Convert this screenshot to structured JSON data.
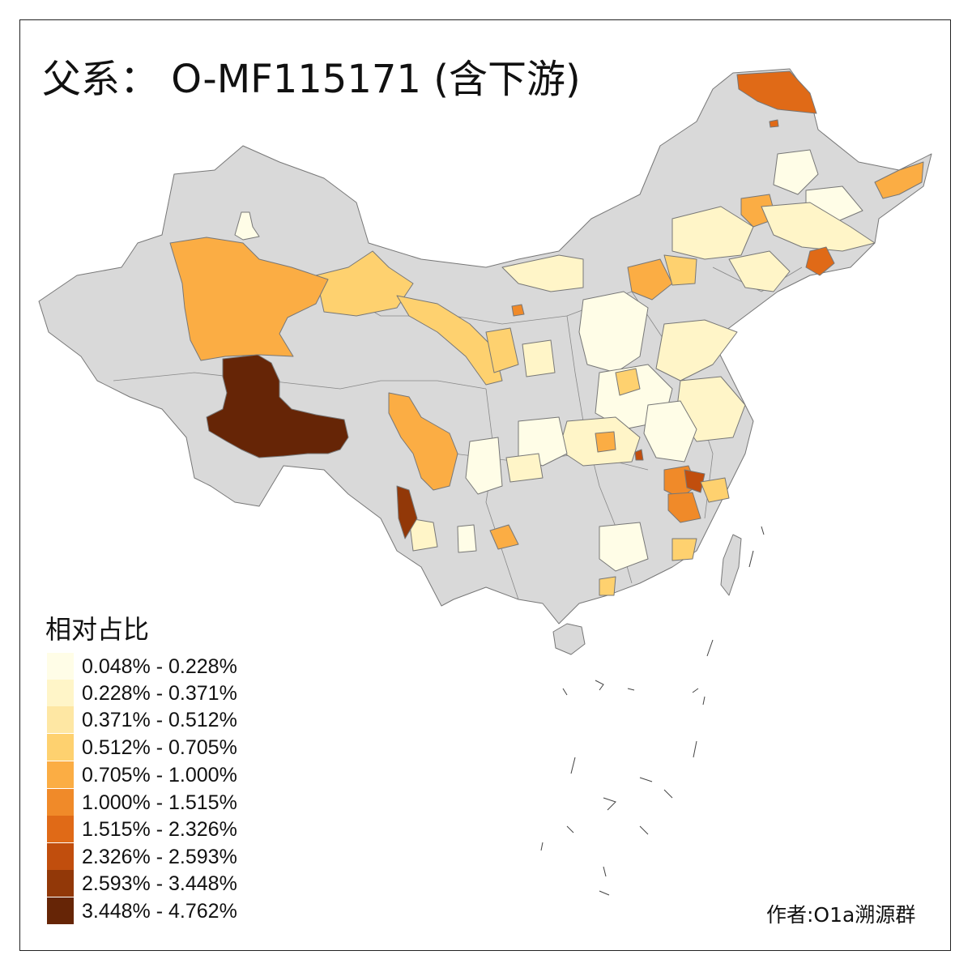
{
  "title": "父系： O-MF115171 (含下游)",
  "legend": {
    "title": "相对占比",
    "items": [
      {
        "label": "0.048% - 0.228%",
        "color": "#FFFDE7"
      },
      {
        "label": "0.228% - 0.371%",
        "color": "#FFF5C8"
      },
      {
        "label": "0.371% - 0.512%",
        "color": "#FEE7A3"
      },
      {
        "label": "0.512% - 0.705%",
        "color": "#FED16F"
      },
      {
        "label": "0.705% - 1.000%",
        "color": "#FBAD44"
      },
      {
        "label": "1.000% - 1.515%",
        "color": "#F08A29"
      },
      {
        "label": "1.515% - 2.326%",
        "color": "#E06A17"
      },
      {
        "label": "2.326% - 2.593%",
        "color": "#C14E0D"
      },
      {
        "label": "2.593% - 3.448%",
        "color": "#923808"
      },
      {
        "label": "3.448% - 4.762%",
        "color": "#662506"
      }
    ]
  },
  "credit": "作者:O1a溯源群",
  "colors": {
    "no_data": "#D9D9D9",
    "border": "#777777",
    "background": "#FFFFFF"
  }
}
